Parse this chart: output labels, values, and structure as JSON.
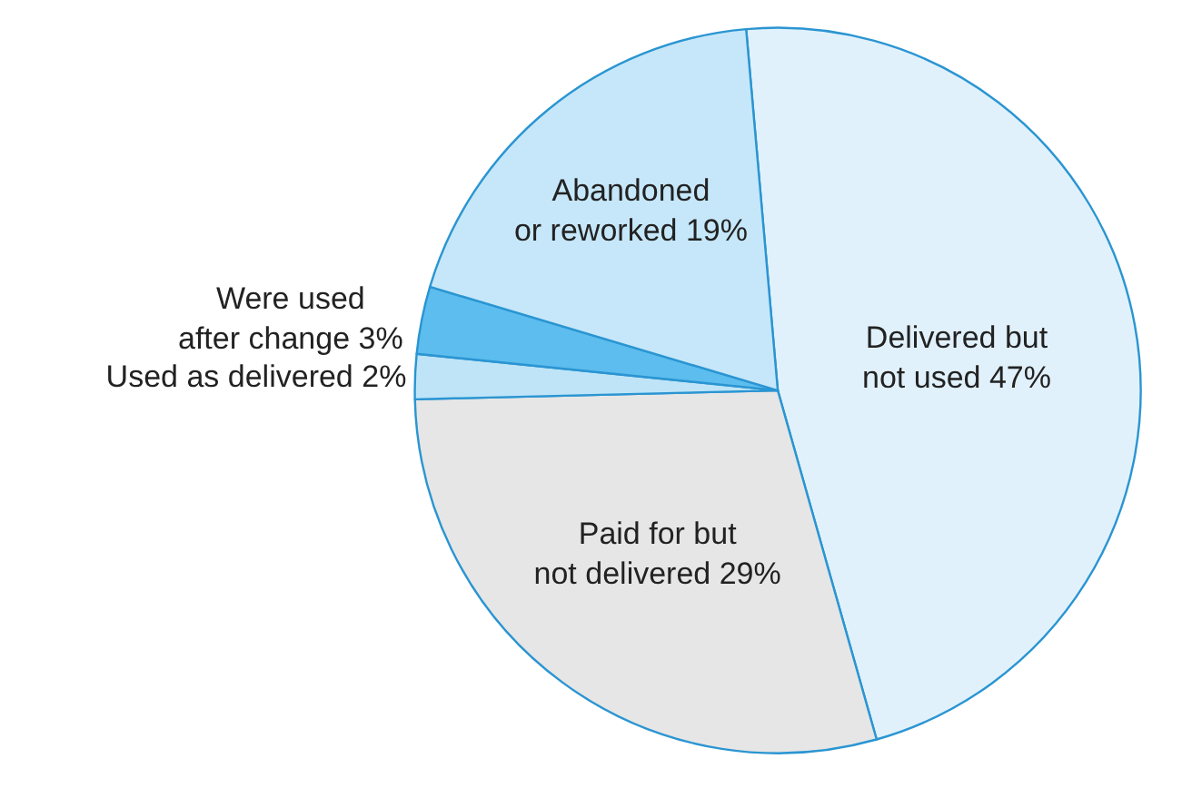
{
  "chart_data": {
    "type": "pie",
    "categories": [
      "Delivered but\nnot used",
      "Paid for but\nnot delivered",
      "Used as delivered",
      "Were used\nafter change",
      "Abandoned\nor reworked"
    ],
    "values": [
      47,
      29,
      2,
      3,
      19
    ],
    "value_labels": [
      "47%",
      "29%",
      "2%",
      "3%",
      "19%"
    ],
    "colors": [
      "#e1f1fb",
      "#e6e6e6",
      "#bfe4f7",
      "#5cbdee",
      "#c6e7f9"
    ],
    "legend": false
  }
}
